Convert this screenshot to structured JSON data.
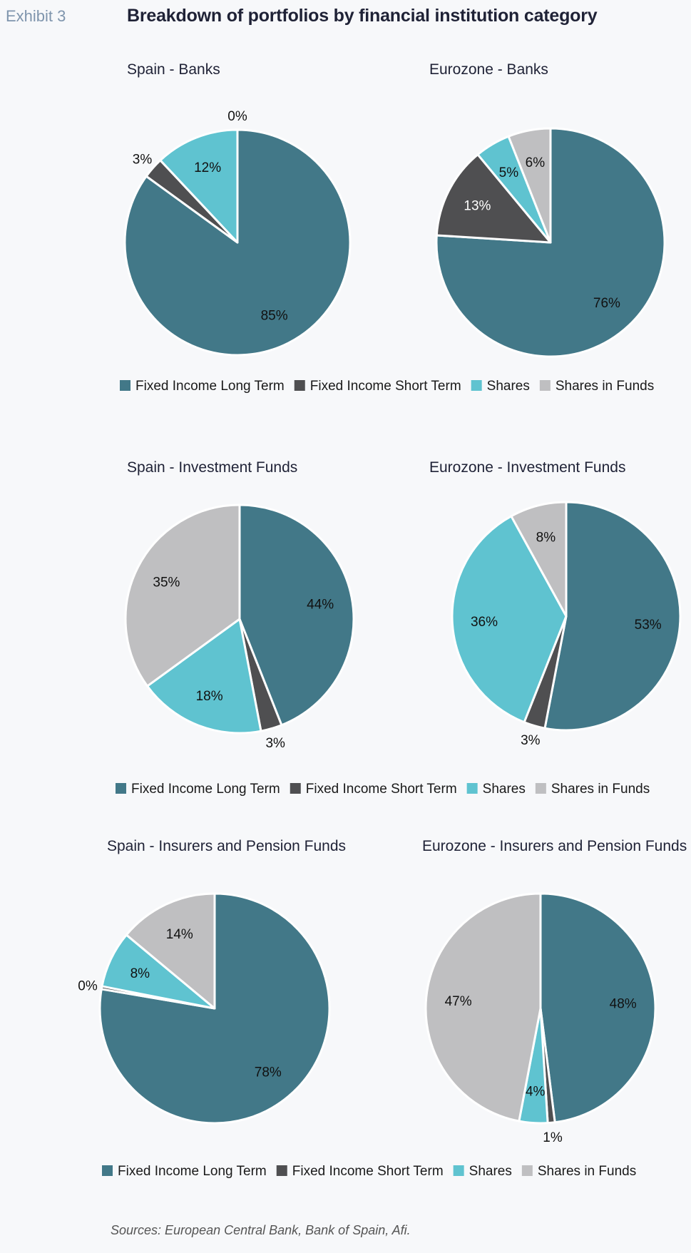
{
  "exhibit_label": "Exhibit 3",
  "title": "Breakdown of portfolios by financial institution category",
  "sources": "Sources: European Central Bank, Bank of Spain, Afi.",
  "colors": {
    "fixed_income_long_term": "#427888",
    "fixed_income_short_term": "#4f4f51",
    "shares": "#5fc3d0",
    "shares_in_funds": "#bfbfc1"
  },
  "legend": [
    "Fixed Income Long Term",
    "Fixed Income Short Term",
    "Shares",
    "Shares in Funds"
  ],
  "chart_data": [
    {
      "type": "pie",
      "title": "Spain - Banks",
      "categories": [
        "Fixed Income Long Term",
        "Fixed Income Short Term",
        "Shares",
        "Shares in Funds"
      ],
      "values": [
        85,
        3,
        12,
        0
      ],
      "labels": [
        "85%",
        "3%",
        "12%",
        "0%"
      ]
    },
    {
      "type": "pie",
      "title": "Eurozone - Banks",
      "categories": [
        "Fixed Income Long Term",
        "Fixed Income Short Term",
        "Shares",
        "Shares in Funds"
      ],
      "values": [
        76,
        13,
        5,
        6
      ],
      "labels": [
        "76%",
        "13%",
        "5%",
        "6%"
      ]
    },
    {
      "type": "pie",
      "title": "Spain - Investment Funds",
      "categories": [
        "Fixed Income Long Term",
        "Fixed Income Short Term",
        "Shares",
        "Shares in Funds"
      ],
      "values": [
        44,
        3,
        18,
        35
      ],
      "labels": [
        "44%",
        "3%",
        "18%",
        "35%"
      ]
    },
    {
      "type": "pie",
      "title": "Eurozone - Investment Funds",
      "categories": [
        "Fixed Income Long Term",
        "Fixed Income Short Term",
        "Shares",
        "Shares in Funds"
      ],
      "values": [
        53,
        3,
        36,
        8
      ],
      "labels": [
        "53%",
        "3%",
        "36%",
        "8%"
      ]
    },
    {
      "type": "pie",
      "title": "Spain - Insurers and Pension Funds",
      "categories": [
        "Fixed Income Long Term",
        "Fixed Income Short Term",
        "Shares",
        "Shares in Funds"
      ],
      "values": [
        78,
        0.4,
        8,
        14
      ],
      "labels": [
        "78%",
        "0%",
        "8%",
        "14%"
      ]
    },
    {
      "type": "pie",
      "title": "Eurozone - Insurers and Pension Funds",
      "categories": [
        "Fixed Income Long Term",
        "Fixed Income Short Term",
        "Shares",
        "Shares in Funds"
      ],
      "values": [
        48,
        1,
        4,
        47
      ],
      "labels": [
        "48%",
        "1%",
        "4%",
        "47%"
      ]
    }
  ]
}
